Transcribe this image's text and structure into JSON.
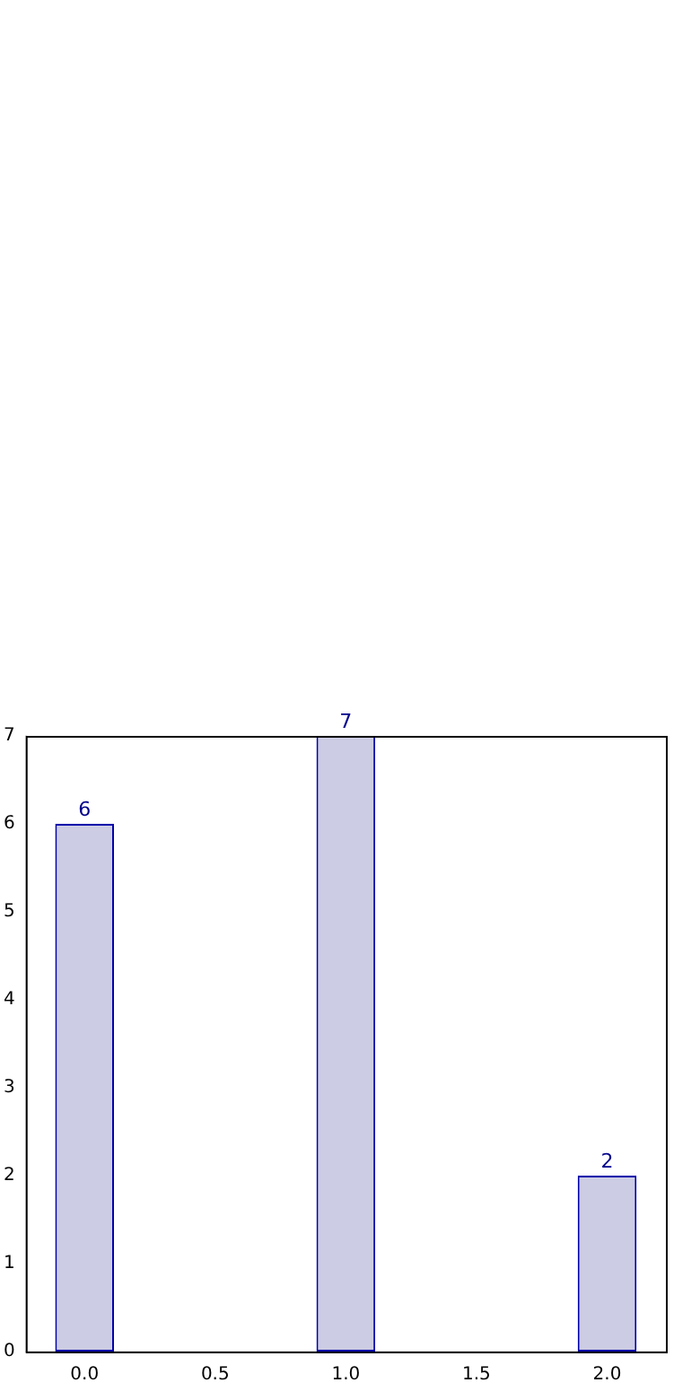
{
  "chart_data": {
    "type": "bar",
    "x": [
      0,
      1,
      2
    ],
    "values": [
      6,
      7,
      2
    ],
    "color": "#cccce4",
    "xlim": [
      -0.225,
      2.225
    ],
    "xticks": [
      {
        "value": 0,
        "label": "0.0"
      },
      {
        "value": 0.5,
        "label": "0.5"
      },
      {
        "value": 1,
        "label": "1.0"
      },
      {
        "value": 1.5,
        "label": "1.5"
      },
      {
        "value": 2,
        "label": "2.0"
      }
    ],
    "ylim": [
      0,
      7
    ],
    "yticks": [
      0,
      1,
      2,
      3,
      4,
      5,
      6,
      7
    ],
    "grid": false,
    "legend": false,
    "data_labels": true
  }
}
